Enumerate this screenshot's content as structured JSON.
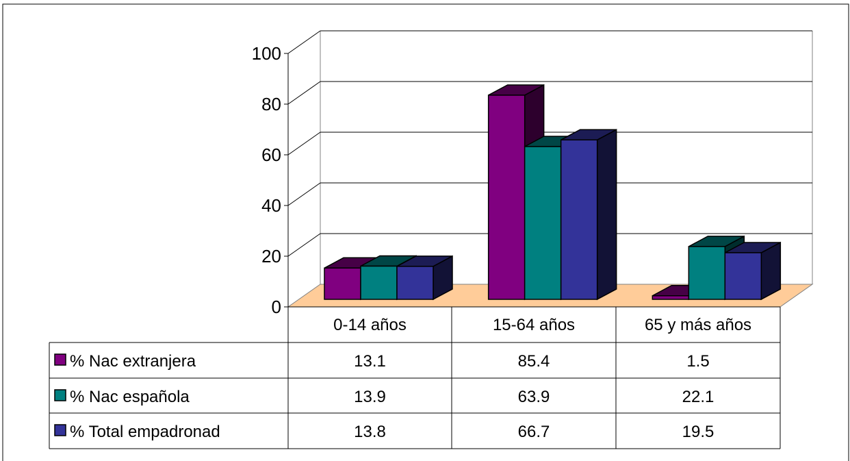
{
  "chart_data": {
    "type": "bar",
    "categories": [
      "0-14 años",
      "15-64 años",
      "65 y más años"
    ],
    "series": [
      {
        "name": "% Nac extranjera",
        "values": [
          13.1,
          85.4,
          1.5
        ],
        "color": "#800080"
      },
      {
        "name": "% Nac española",
        "values": [
          13.9,
          63.9,
          22.1
        ],
        "color": "#008080"
      },
      {
        "name": "% Total empadronad",
        "values": [
          13.8,
          66.7,
          19.5
        ],
        "color": "#333399"
      }
    ],
    "ylim": [
      0,
      100
    ],
    "yticks": [
      0,
      20,
      40,
      60,
      80,
      100
    ],
    "grid": true,
    "legend": "data-table",
    "floor_color": "#FFCC99"
  }
}
